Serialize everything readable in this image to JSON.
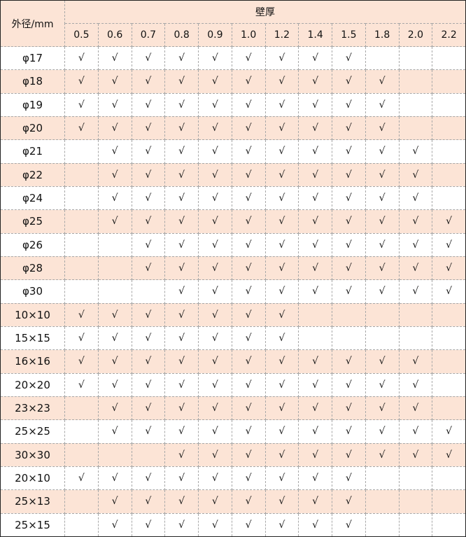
{
  "header": {
    "outer_label": "外径/mm",
    "wall_label": "壁厚",
    "thicknesses": [
      "0.5",
      "0.6",
      "0.7",
      "0.8",
      "0.9",
      "1.0",
      "1.2",
      "1.4",
      "1.5",
      "1.8",
      "2.0",
      "2.2"
    ]
  },
  "colors": {
    "stripe": "#fce4d6",
    "border": "#a8a8a8"
  },
  "rows": [
    {
      "label": "φ17",
      "cells": [
        "√",
        "√",
        "√",
        "√",
        "√",
        "√",
        "√",
        "√",
        "√",
        "",
        "",
        ""
      ]
    },
    {
      "label": "φ18",
      "cells": [
        "√",
        "√",
        "√",
        "√",
        "√",
        "√",
        "√",
        "√",
        "√",
        "√",
        "",
        ""
      ]
    },
    {
      "label": "φ19",
      "cells": [
        "√",
        "√",
        "√",
        "√",
        "√",
        "√",
        "√",
        "√",
        "√",
        "√",
        "",
        ""
      ]
    },
    {
      "label": "φ20",
      "cells": [
        "√",
        "√",
        "√",
        "√",
        "√",
        "√",
        "√",
        "√",
        "√",
        "√",
        "",
        ""
      ]
    },
    {
      "label": "φ21",
      "cells": [
        "",
        "√",
        "√",
        "√",
        "√",
        "√",
        "√",
        "√",
        "√",
        "√",
        "√",
        ""
      ]
    },
    {
      "label": "φ22",
      "cells": [
        "",
        "√",
        "√",
        "√",
        "√",
        "√",
        "√",
        "√",
        "√",
        "√",
        "√",
        ""
      ]
    },
    {
      "label": "φ24",
      "cells": [
        "",
        "√",
        "√",
        "√",
        "√",
        "√",
        "√",
        "√",
        "√",
        "√",
        "√",
        ""
      ]
    },
    {
      "label": "φ25",
      "cells": [
        "",
        "√",
        "√",
        "√",
        "√",
        "√",
        "√",
        "√",
        "√",
        "√",
        "√",
        "√"
      ]
    },
    {
      "label": "φ26",
      "cells": [
        "",
        "",
        "√",
        "√",
        "√",
        "√",
        "√",
        "√",
        "√",
        "√",
        "√",
        "√"
      ]
    },
    {
      "label": "φ28",
      "cells": [
        "",
        "",
        "√",
        "√",
        "√",
        "√",
        "√",
        "√",
        "√",
        "√",
        "√",
        "√"
      ]
    },
    {
      "label": "φ30",
      "cells": [
        "",
        "",
        "",
        "√",
        "√",
        "√",
        "√",
        "√",
        "√",
        "√",
        "√",
        "√"
      ]
    },
    {
      "label": "10×10",
      "cells": [
        "√",
        "√",
        "√",
        "√",
        "√",
        "√",
        "√",
        "",
        "",
        "",
        "",
        ""
      ]
    },
    {
      "label": "15×15",
      "cells": [
        "√",
        "√",
        "√",
        "√",
        "√",
        "√",
        "√",
        "",
        "",
        "",
        "",
        ""
      ]
    },
    {
      "label": "16×16",
      "cells": [
        "√",
        "√",
        "√",
        "√",
        "√",
        "√",
        "√",
        "√",
        "√",
        "√",
        "√",
        ""
      ]
    },
    {
      "label": "20×20",
      "cells": [
        "√",
        "√",
        "√",
        "√",
        "√",
        "√",
        "√",
        "√",
        "√",
        "√",
        "√",
        ""
      ]
    },
    {
      "label": "23×23",
      "cells": [
        "",
        "√",
        "√",
        "√",
        "√",
        "√",
        "√",
        "√",
        "√",
        "√",
        "√",
        ""
      ]
    },
    {
      "label": "25×25",
      "cells": [
        "",
        "√",
        "√",
        "√",
        "√",
        "√",
        "√",
        "√",
        "√",
        "√",
        "√",
        "√"
      ]
    },
    {
      "label": "30×30",
      "cells": [
        "",
        "",
        "",
        "√",
        "√",
        "√",
        "√",
        "√",
        "√",
        "√",
        "√",
        "√"
      ]
    },
    {
      "label": "20×10",
      "cells": [
        "√",
        "√",
        "√",
        "√",
        "√",
        "√",
        "√",
        "√",
        "√",
        "",
        "",
        ""
      ]
    },
    {
      "label": "25×13",
      "cells": [
        "",
        "√",
        "√",
        "√",
        "√",
        "√",
        "√",
        "√",
        "√",
        "",
        "",
        ""
      ]
    },
    {
      "label": "25×15",
      "cells": [
        "",
        "√",
        "√",
        "√",
        "√",
        "√",
        "√",
        "√",
        "√",
        "",
        "",
        ""
      ]
    }
  ]
}
